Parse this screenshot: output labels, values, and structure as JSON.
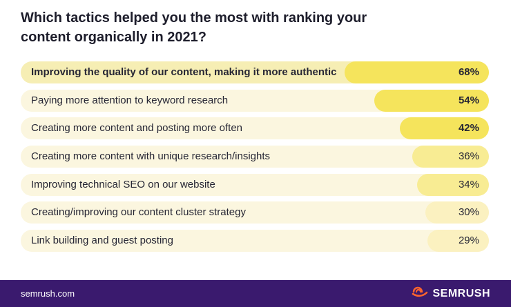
{
  "colors": {
    "footer_bg": "#3a1a6e",
    "bar_strong": "#f5e45c",
    "bar_medium": "#f8ec93",
    "bar_light": "#fbf1c0",
    "track": "#fbf6df",
    "brand_orange": "#ff642d"
  },
  "footer": {
    "url": "semrush.com",
    "brand": "SEMRUSH",
    "brand_icon": "semrush-logo-icon"
  },
  "chart_data": {
    "type": "bar",
    "orientation": "horizontal",
    "title": "Which tactics helped you the most with ranking your content organically in 2021?",
    "unit": "%",
    "categories": [
      "Improving the quality of our content, making it more authentic",
      "Paying more attention to keyword research",
      "Creating more content and posting more often",
      "Creating more content with unique research/insights",
      "Improving technical SEO on our website",
      "Creating/improving our content cluster strategy",
      "Link building and guest posting"
    ],
    "values": [
      68,
      54,
      42,
      36,
      34,
      30,
      29
    ],
    "labels": [
      "68%",
      "54%",
      "42%",
      "36%",
      "34%",
      "30%",
      "29%"
    ]
  }
}
